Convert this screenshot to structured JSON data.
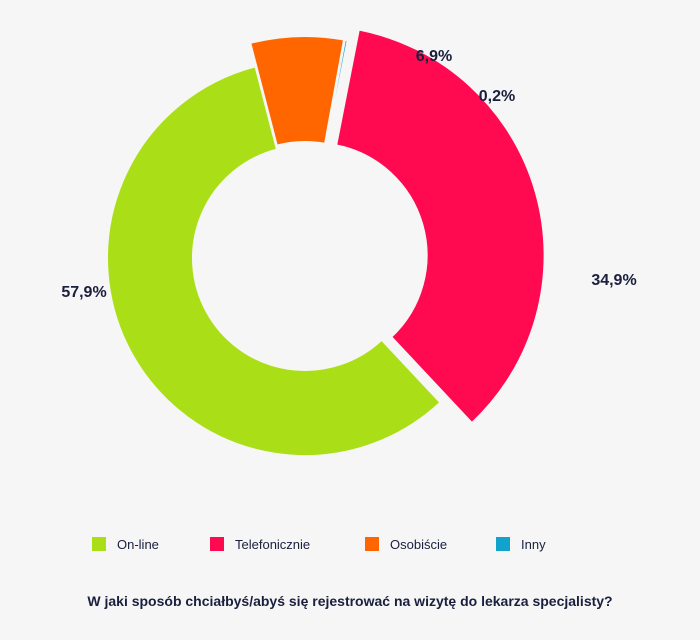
{
  "chart_data": {
    "type": "pie",
    "variant": "donut",
    "title": "W jaki sposób chciałbyś/abyś się rejestrować na wizytę do lekarza specjalisty?",
    "legend_position": "bottom",
    "series": [
      {
        "name": "On-line",
        "value": 57.9,
        "label": "57,9%",
        "color": "#aadf17"
      },
      {
        "name": "Telefonicznie",
        "value": 34.9,
        "label": "34,9%",
        "color": "#ff0a50"
      },
      {
        "name": "Osobiście",
        "value": 6.9,
        "label": "6,9%",
        "color": "#ff6600"
      },
      {
        "name": "Inny",
        "value": 0.2,
        "label": "0,2%",
        "color": "#12a3cc"
      }
    ]
  }
}
